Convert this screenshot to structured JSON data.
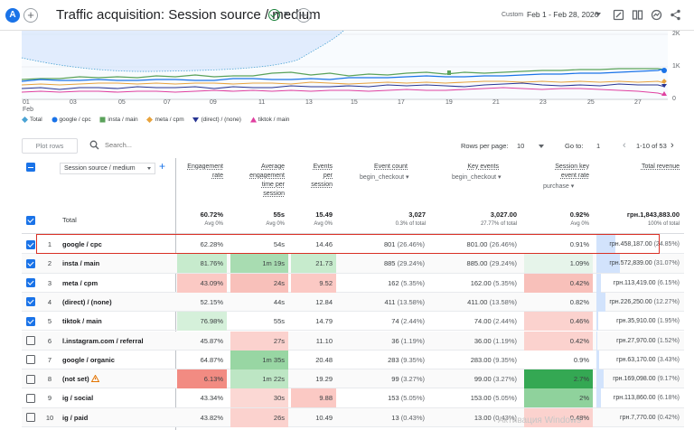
{
  "header": {
    "avatar_letter": "A",
    "title": "Traffic acquisition: Session source / medium",
    "custom_label": "Custom",
    "date_range": "Feb 1 - Feb 28, 2026"
  },
  "chart": {
    "y_labels": [
      "2K",
      "1K",
      "0"
    ],
    "x_labels": [
      "01",
      "03",
      "05",
      "07",
      "09",
      "11",
      "13",
      "15",
      "17",
      "19",
      "21",
      "23",
      "25",
      "27"
    ],
    "x_month": "Feb"
  },
  "legend": [
    {
      "label": "Total",
      "color": "#4ba3d4",
      "icon": "diamond-icon"
    },
    {
      "label": "google / cpc",
      "color": "#1a73e8",
      "icon": "circle-icon"
    },
    {
      "label": "insta / main",
      "color": "#5aa25a",
      "icon": "square-icon"
    },
    {
      "label": "meta / cpm",
      "color": "#e8a33d",
      "icon": "diamond-icon"
    },
    {
      "label": "(direct) / (none)",
      "color": "#283593",
      "icon": "triangle-down-icon"
    },
    {
      "label": "tiktok / main",
      "color": "#e040a0",
      "icon": "triangle-up-icon"
    }
  ],
  "toolbar": {
    "plot_rows": "Plot rows",
    "search_placeholder": "Search...",
    "rows_per_page_label": "Rows per page:",
    "rows_per_page": "10",
    "goto_label": "Go to:",
    "goto_value": "1",
    "page_info": "1-10 of 53"
  },
  "table": {
    "dimension": "Session source / medium",
    "columns": [
      {
        "title": "Engagement rate",
        "lines": [
          "Engagement",
          "rate"
        ]
      },
      {
        "title": "Average engagement time per session",
        "lines": [
          "Average",
          "engagement",
          "time per",
          "session"
        ]
      },
      {
        "title": "Events per session",
        "lines": [
          "Events",
          "per",
          "session"
        ]
      },
      {
        "title": "Event count",
        "lines": [
          "Event count"
        ],
        "sub": "begin_checkout"
      },
      {
        "title": "Key events",
        "lines": [
          "Key events"
        ],
        "sub": "begin_checkout"
      },
      {
        "title": "Session key event rate",
        "lines": [
          "Session key",
          "event rate"
        ],
        "sub": "purchase"
      },
      {
        "title": "Total revenue",
        "lines": [
          "Total revenue"
        ]
      }
    ],
    "total_label": "Total",
    "totals": [
      {
        "value": "60.72%",
        "sub": "Avg 0%"
      },
      {
        "value": "55s",
        "sub": "Avg 0%"
      },
      {
        "value": "15.49",
        "sub": "Avg 0%"
      },
      {
        "value": "3,027",
        "sub": "0.3% of total"
      },
      {
        "value": "3,027.00",
        "sub": "27.77% of total"
      },
      {
        "value": "0.92%",
        "sub": "Avg 0%"
      },
      {
        "value": "грн.1,843,883.00",
        "sub": "100% of total"
      }
    ],
    "rows": [
      {
        "n": "1",
        "checked": true,
        "dim": "google / cpc",
        "eng": "62.28%",
        "time": "54s",
        "eps": "14.46",
        "ec": "801",
        "ec_pct": "(26.46%)",
        "ke": "801.00",
        "ke_pct": "(26.46%)",
        "rate": "0.91%",
        "rev": "грн.458,187.00",
        "rev_pct": "(24.85%)"
      },
      {
        "n": "2",
        "checked": true,
        "dim": "insta / main",
        "eng": "81.76%",
        "time": "1m 19s",
        "eps": "21.73",
        "ec": "885",
        "ec_pct": "(29.24%)",
        "ke": "885.00",
        "ke_pct": "(29.24%)",
        "rate": "1.09%",
        "rev": "грн.572,839.00",
        "rev_pct": "(31.07%)"
      },
      {
        "n": "3",
        "checked": true,
        "dim": "meta / cpm",
        "eng": "43.09%",
        "time": "24s",
        "eps": "9.52",
        "ec": "162",
        "ec_pct": "(5.35%)",
        "ke": "162.00",
        "ke_pct": "(5.35%)",
        "rate": "0.42%",
        "rev": "грн.113,419.00",
        "rev_pct": "(6.15%)"
      },
      {
        "n": "4",
        "checked": true,
        "dim": "(direct) / (none)",
        "eng": "52.15%",
        "time": "44s",
        "eps": "12.84",
        "ec": "411",
        "ec_pct": "(13.58%)",
        "ke": "411.00",
        "ke_pct": "(13.58%)",
        "rate": "0.82%",
        "rev": "грн.226,250.00",
        "rev_pct": "(12.27%)"
      },
      {
        "n": "5",
        "checked": true,
        "dim": "tiktok / main",
        "eng": "76.98%",
        "time": "55s",
        "eps": "14.79",
        "ec": "74",
        "ec_pct": "(2.44%)",
        "ke": "74.00",
        "ke_pct": "(2.44%)",
        "rate": "0.46%",
        "rev": "грн.35,910.00",
        "rev_pct": "(1.95%)"
      },
      {
        "n": "6",
        "checked": false,
        "dim": "l.instagram.com / referral",
        "eng": "45.87%",
        "time": "27s",
        "eps": "11.10",
        "ec": "36",
        "ec_pct": "(1.19%)",
        "ke": "36.00",
        "ke_pct": "(1.19%)",
        "rate": "0.42%",
        "rev": "грн.27,970.00",
        "rev_pct": "(1.52%)"
      },
      {
        "n": "7",
        "checked": false,
        "dim": "google / organic",
        "eng": "64.87%",
        "time": "1m 35s",
        "eps": "20.48",
        "ec": "283",
        "ec_pct": "(9.35%)",
        "ke": "283.00",
        "ke_pct": "(9.35%)",
        "rate": "0.9%",
        "rev": "грн.63,170.00",
        "rev_pct": "(3.43%)"
      },
      {
        "n": "8",
        "checked": false,
        "dim": "(not set)",
        "warn": true,
        "eng": "6.13%",
        "time": "1m 22s",
        "eps": "19.29",
        "ec": "99",
        "ec_pct": "(3.27%)",
        "ke": "99.00",
        "ke_pct": "(3.27%)",
        "rate": "2.7%",
        "rev": "грн.169,098.00",
        "rev_pct": "(9.17%)"
      },
      {
        "n": "9",
        "checked": false,
        "dim": "ig / social",
        "eng": "43.34%",
        "time": "30s",
        "eps": "9.88",
        "ec": "153",
        "ec_pct": "(5.05%)",
        "ke": "153.00",
        "ke_pct": "(5.05%)",
        "rate": "2%",
        "rev": "грн.113,860.00",
        "rev_pct": "(6.18%)"
      },
      {
        "n": "10",
        "checked": false,
        "dim": "ig / paid",
        "eng": "43.82%",
        "time": "26s",
        "eps": "10.49",
        "ec": "13",
        "ec_pct": "(0.43%)",
        "ke": "13.00",
        "ke_pct": "(0.43%)",
        "rate": "0.48%",
        "rev": "грн.7,770.00",
        "rev_pct": "(0.42%)"
      }
    ]
  },
  "watermark": "Активация Windows",
  "colors": {
    "accent": "#1a73e8",
    "highlight_border": "#d93025",
    "positive": "#34a853",
    "negative": "#ea4335"
  }
}
